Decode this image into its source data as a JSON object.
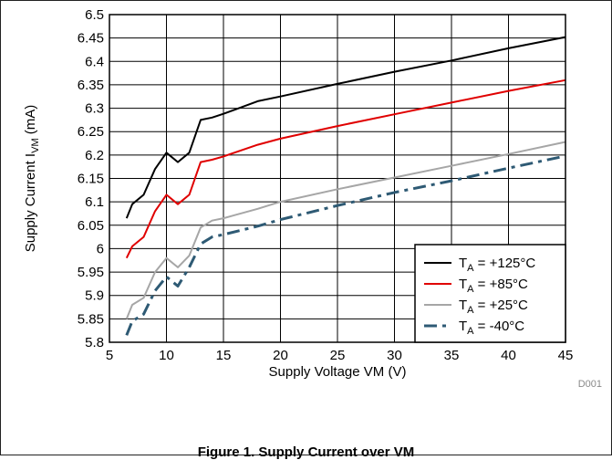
{
  "caption": "Figure 1. Supply Current over VM",
  "figure_id": "D001",
  "chart_data": {
    "type": "line",
    "title": "",
    "xlabel": "Supply Voltage VM (V)",
    "ylabel_main": "Supply Current I",
    "ylabel_sub": "VM",
    "ylabel_unit": " (mA)",
    "xlim": [
      5,
      45
    ],
    "ylim": [
      5.8,
      6.5
    ],
    "x_ticks": [
      5,
      10,
      15,
      20,
      25,
      30,
      35,
      40,
      45
    ],
    "x_tick_labels": [
      "5",
      "10",
      "15",
      "20",
      "25",
      "30",
      "35",
      "40",
      "45"
    ],
    "y_ticks": [
      5.8,
      5.85,
      5.9,
      5.95,
      6.0,
      6.05,
      6.1,
      6.15,
      6.2,
      6.25,
      6.3,
      6.35,
      6.4,
      6.45,
      6.5
    ],
    "y_tick_labels": [
      "5.8",
      "5.85",
      "5.9",
      "5.95",
      "6",
      "6.05",
      "6.1",
      "6.15",
      "6.2",
      "6.25",
      "6.3",
      "6.35",
      "6.4",
      "6.45",
      "6.5"
    ],
    "grid": true,
    "legend_position": "bottom-right",
    "series": [
      {
        "name_prefix": "T",
        "name_sub": "A",
        "name_suffix": " = +125°C",
        "color": "#000000",
        "style": "solid",
        "x": [
          6.5,
          7,
          8,
          9,
          10,
          11,
          12,
          13,
          14,
          15,
          18,
          20,
          25,
          30,
          35,
          40,
          45
        ],
        "y": [
          6.065,
          6.095,
          6.115,
          6.17,
          6.205,
          6.185,
          6.205,
          6.275,
          6.28,
          6.288,
          6.315,
          6.325,
          6.352,
          6.378,
          6.402,
          6.428,
          6.452
        ]
      },
      {
        "name_prefix": "T",
        "name_sub": "A",
        "name_suffix": " = +85°C",
        "color": "#e00000",
        "style": "solid",
        "x": [
          6.5,
          7,
          8,
          9,
          10,
          11,
          12,
          13,
          14,
          15,
          18,
          20,
          25,
          30,
          35,
          40,
          45
        ],
        "y": [
          5.98,
          6.005,
          6.025,
          6.08,
          6.115,
          6.095,
          6.115,
          6.185,
          6.19,
          6.197,
          6.222,
          6.235,
          6.262,
          6.287,
          6.312,
          6.337,
          6.36
        ]
      },
      {
        "name_prefix": "T",
        "name_sub": "A",
        "name_suffix": " = +25°C",
        "color": "#a6a6a6",
        "style": "solid",
        "x": [
          6.5,
          7,
          8,
          9,
          10,
          11,
          12,
          13,
          14,
          15,
          18,
          20,
          25,
          30,
          35,
          40,
          45
        ],
        "y": [
          5.85,
          5.88,
          5.895,
          5.95,
          5.98,
          5.96,
          5.985,
          6.045,
          6.06,
          6.065,
          6.085,
          6.1,
          6.127,
          6.152,
          6.177,
          6.202,
          6.228
        ]
      },
      {
        "name_prefix": "T",
        "name_sub": "A",
        "name_suffix": " = -40°C",
        "color": "#2e5a74",
        "style": "dashdot",
        "x": [
          6.5,
          7,
          8,
          9,
          10,
          11,
          12,
          13,
          14,
          15,
          18,
          20,
          25,
          30,
          35,
          40,
          45
        ],
        "y": [
          5.815,
          5.845,
          5.86,
          5.91,
          5.94,
          5.92,
          5.96,
          6.01,
          6.025,
          6.03,
          6.048,
          6.062,
          6.092,
          6.12,
          6.145,
          6.172,
          6.198
        ]
      }
    ]
  }
}
